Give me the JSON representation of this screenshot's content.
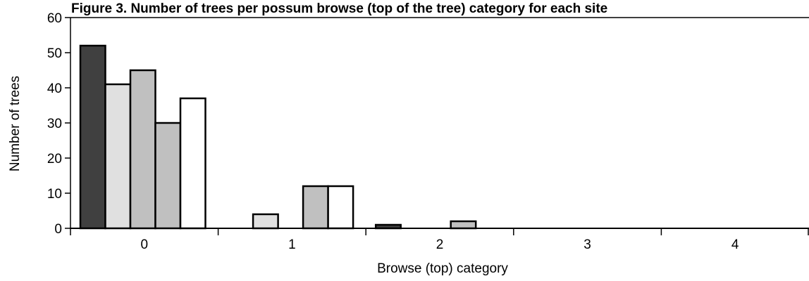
{
  "chart_data": {
    "type": "bar",
    "title": "Figure 3. Number of trees per possum browse (top of the tree) category for each site",
    "xlabel": "Browse (top) category",
    "ylabel": "Number of trees",
    "categories": [
      "0",
      "1",
      "2",
      "3",
      "4"
    ],
    "ylim": [
      0,
      60
    ],
    "yticks": [
      0,
      10,
      20,
      30,
      40,
      50,
      60
    ],
    "grid": false,
    "legend": "none",
    "series": [
      {
        "color": "#404040",
        "values": [
          52,
          0,
          1,
          0,
          0
        ]
      },
      {
        "color": "#e0e0e0",
        "values": [
          41,
          4,
          0,
          0,
          0
        ]
      },
      {
        "color": "#c0c0c0",
        "values": [
          45,
          0,
          0,
          0,
          0
        ]
      },
      {
        "color": "#c0c0c0",
        "values": [
          30,
          12,
          2,
          0,
          0
        ]
      },
      {
        "color": "#ffffff",
        "values": [
          37,
          12,
          0,
          0,
          0
        ]
      }
    ]
  }
}
